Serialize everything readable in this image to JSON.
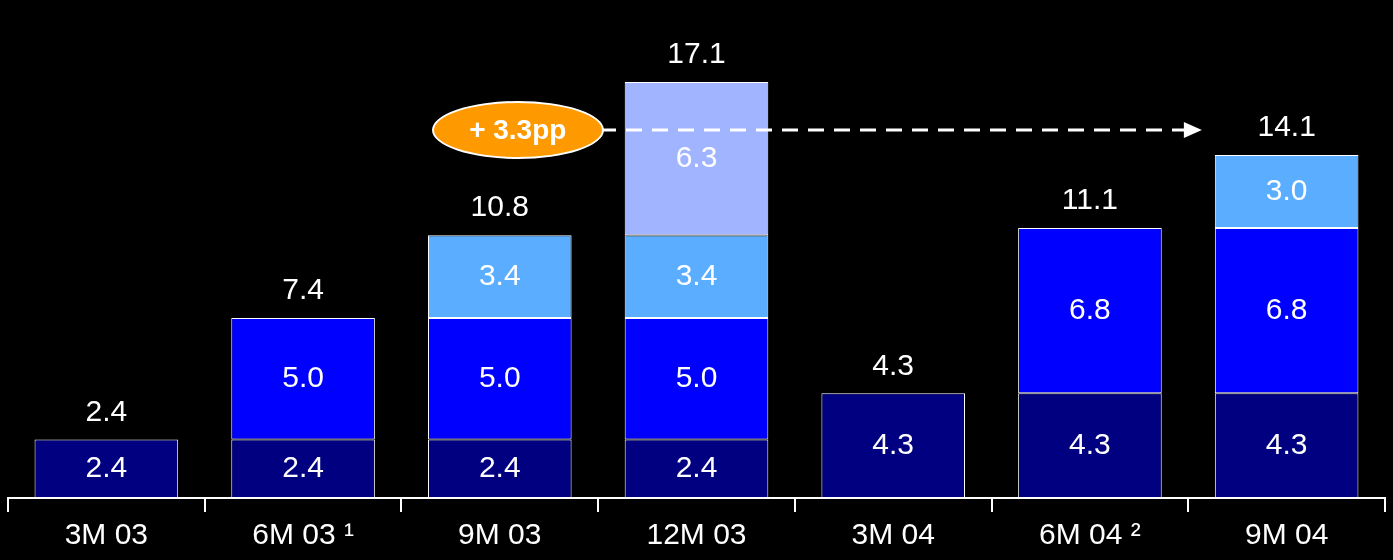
{
  "chart_data": {
    "type": "bar",
    "stacked": true,
    "categories": [
      "3M 03",
      "6M 03 ¹",
      "9M 03",
      "12M 03",
      "3M 04",
      "6M 04 ²",
      "9M 04"
    ],
    "series": [
      {
        "color": "#000080",
        "values": [
          2.4,
          2.4,
          2.4,
          2.4,
          4.3,
          4.3,
          4.3
        ],
        "value_labels": [
          "2.4",
          "2.4",
          "2.4",
          "2.4",
          "4.3",
          "4.3",
          "4.3"
        ]
      },
      {
        "color": "#0000ff",
        "values": [
          null,
          5.0,
          5.0,
          5.0,
          null,
          6.8,
          6.8
        ],
        "value_labels": [
          null,
          "5.0",
          "5.0",
          "5.0",
          null,
          "6.8",
          "6.8"
        ]
      },
      {
        "color": "#5aadff",
        "values": [
          null,
          null,
          3.4,
          3.4,
          null,
          null,
          3.0
        ],
        "value_labels": [
          null,
          null,
          "3.4",
          "3.4",
          null,
          null,
          "3.0"
        ]
      },
      {
        "color": "#a0b4ff",
        "values": [
          null,
          null,
          null,
          6.3,
          null,
          null,
          null
        ],
        "value_labels": [
          null,
          null,
          null,
          "6.3",
          null,
          null,
          null
        ]
      }
    ],
    "totals": [
      "2.4",
      "7.4",
      "10.8",
      "17.1",
      "4.3",
      "11.1",
      "14.1"
    ],
    "annotations": [
      "+ 3.3pp"
    ],
    "grid": false,
    "legend": false
  }
}
